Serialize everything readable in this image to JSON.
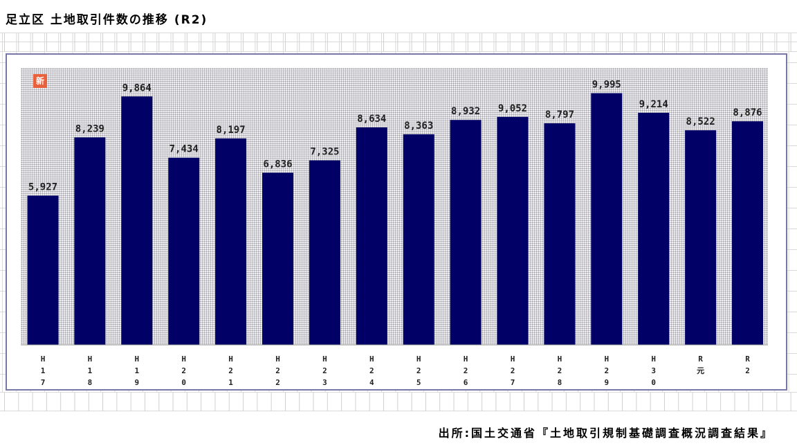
{
  "page": {
    "title": "足立区 土地取引件数の推移 (R2)",
    "badge": "新",
    "source": "出所:国土交通省『土地取引規制基礎調査概況調査結果』"
  },
  "chart_data": {
    "type": "bar",
    "title": "足立区 土地取引件数の推移 (R2)",
    "xlabel": "",
    "ylabel": "",
    "ylim": [
      0,
      11000
    ],
    "grid": false,
    "legend": "none",
    "bar_color": "#000066",
    "categories": [
      "H17",
      "H18",
      "H19",
      "H20",
      "H21",
      "H22",
      "H23",
      "H24",
      "H25",
      "H26",
      "H27",
      "H28",
      "H29",
      "H30",
      "R元",
      "R2"
    ],
    "category_labels": [
      [
        "H",
        "1",
        "7"
      ],
      [
        "H",
        "1",
        "8"
      ],
      [
        "H",
        "1",
        "9"
      ],
      [
        "H",
        "2",
        "0"
      ],
      [
        "H",
        "2",
        "1"
      ],
      [
        "H",
        "2",
        "2"
      ],
      [
        "H",
        "2",
        "3"
      ],
      [
        "H",
        "2",
        "4"
      ],
      [
        "H",
        "2",
        "5"
      ],
      [
        "H",
        "2",
        "6"
      ],
      [
        "H",
        "2",
        "7"
      ],
      [
        "H",
        "2",
        "8"
      ],
      [
        "H",
        "2",
        "9"
      ],
      [
        "H",
        "3",
        "0"
      ],
      [
        "R",
        "元"
      ],
      [
        "R",
        "2"
      ]
    ],
    "values": [
      5927,
      8239,
      9864,
      7434,
      8197,
      6836,
      7325,
      8634,
      8363,
      8932,
      9052,
      8797,
      9995,
      9214,
      8522,
      8876
    ],
    "value_labels": [
      "5,927",
      "8,239",
      "9,864",
      "7,434",
      "8,197",
      "6,836",
      "7,325",
      "8,634",
      "8,363",
      "8,932",
      "9,052",
      "8,797",
      "9,995",
      "9,214",
      "8,522",
      "8,876"
    ]
  }
}
